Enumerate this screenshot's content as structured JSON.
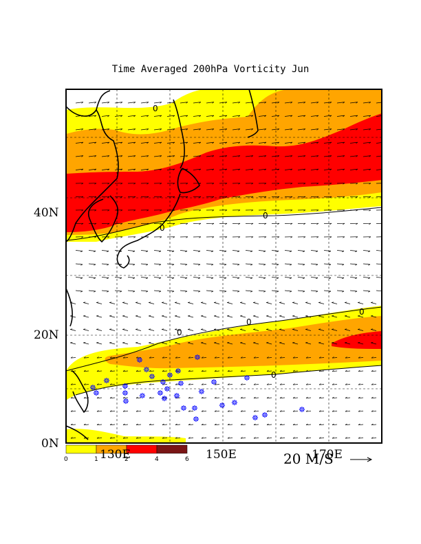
{
  "title": "Time Averaged 200hPa Vorticity Jun",
  "lat_labels": [
    "40N",
    "20N",
    "0N"
  ],
  "lon_labels": [
    "130E",
    "150E",
    "170E"
  ],
  "colorbar": {
    "ticks": [
      "0",
      "1",
      "2",
      "4",
      "6"
    ],
    "colors": [
      "#ffff00",
      "#ffa500",
      "#ff0000",
      "#7a1515"
    ]
  },
  "contour_labels": [
    "0",
    "0",
    "0",
    "0",
    "0",
    "0",
    "0"
  ],
  "vector_scale_label": "20 M/S",
  "map": {
    "lat_range": [
      0,
      58
    ],
    "lon_range": [
      110,
      180
    ],
    "fill_colors": {
      "level1": "#ffff00",
      "level2": "#ffa500",
      "level3": "#ff0000",
      "level4": "#7a1515"
    },
    "coastline_color": "#000000",
    "vector_color": "#000000",
    "typhoon_symbol_color": "#0000ff",
    "grid_lines": "dashed"
  }
}
